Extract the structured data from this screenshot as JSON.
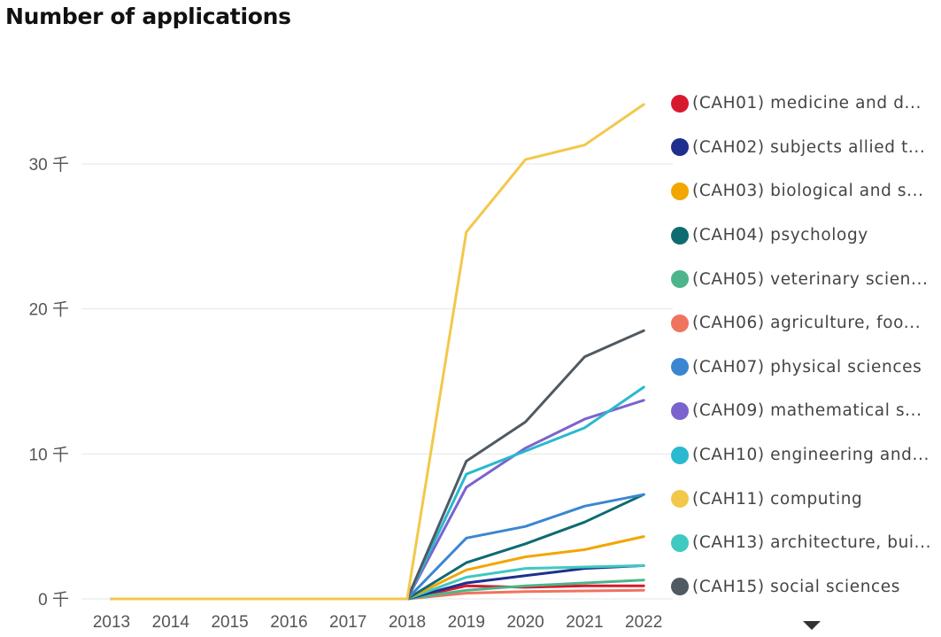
{
  "chart_data": {
    "type": "line",
    "title": "Number of applications",
    "xlabel": "",
    "ylabel": "",
    "x": [
      "2013",
      "2014",
      "2015",
      "2016",
      "2017",
      "2018",
      "2019",
      "2020",
      "2021",
      "2022"
    ],
    "ylim": [
      0,
      35000
    ],
    "yticks": [
      {
        "value": 0,
        "label": "0 千"
      },
      {
        "value": 10000,
        "label": "10 千"
      },
      {
        "value": 20000,
        "label": "20 千"
      },
      {
        "value": 30000,
        "label": "30 千"
      }
    ],
    "grid": true,
    "legend_placement": "right",
    "series": [
      {
        "name": "(CAH01) medicine and d...",
        "color": "#d7192f",
        "values": [
          0,
          0,
          0,
          0,
          0,
          0,
          900,
          800,
          900,
          900
        ]
      },
      {
        "name": "(CAH02) subjects allied t...",
        "color": "#1f2f8c",
        "values": [
          0,
          0,
          0,
          0,
          0,
          0,
          1100,
          1600,
          2100,
          2300
        ]
      },
      {
        "name": "(CAH03) biological and s...",
        "color": "#f2a600",
        "values": [
          0,
          0,
          0,
          0,
          0,
          0,
          2000,
          2900,
          3400,
          4300
        ]
      },
      {
        "name": "(CAH04) psychology",
        "color": "#0e6b70",
        "values": [
          0,
          0,
          0,
          0,
          0,
          0,
          2500,
          3800,
          5300,
          7200
        ]
      },
      {
        "name": "(CAH05) veterinary scien...",
        "color": "#4cb58a",
        "values": [
          0,
          0,
          0,
          0,
          0,
          0,
          600,
          900,
          1100,
          1300
        ]
      },
      {
        "name": "(CAH06) agriculture, foo...",
        "color": "#f0735f",
        "values": [
          0,
          0,
          0,
          0,
          0,
          0,
          400,
          500,
          550,
          600
        ]
      },
      {
        "name": "(CAH07) physical sciences",
        "color": "#3b86d1",
        "values": [
          0,
          0,
          0,
          0,
          0,
          0,
          4200,
          5000,
          6400,
          7200
        ]
      },
      {
        "name": "(CAH09) mathematical s...",
        "color": "#7b63cf",
        "values": [
          0,
          0,
          0,
          0,
          0,
          0,
          7700,
          10400,
          12400,
          13700
        ]
      },
      {
        "name": "(CAH10) engineering and...",
        "color": "#2ab9cf",
        "values": [
          0,
          0,
          0,
          0,
          0,
          0,
          8600,
          10200,
          11800,
          14600
        ]
      },
      {
        "name": "(CAH11) computing",
        "color": "#f2c84b",
        "values": [
          0,
          0,
          0,
          0,
          0,
          0,
          25300,
          30300,
          31300,
          34100
        ]
      },
      {
        "name": "(CAH13) architecture, bui...",
        "color": "#3fc9c0",
        "values": [
          0,
          0,
          0,
          0,
          0,
          0,
          1500,
          2100,
          2200,
          2300
        ]
      },
      {
        "name": "(CAH15) social sciences",
        "color": "#4f5a63",
        "values": [
          0,
          0,
          0,
          0,
          0,
          0,
          9500,
          12200,
          16700,
          18500
        ]
      }
    ]
  }
}
